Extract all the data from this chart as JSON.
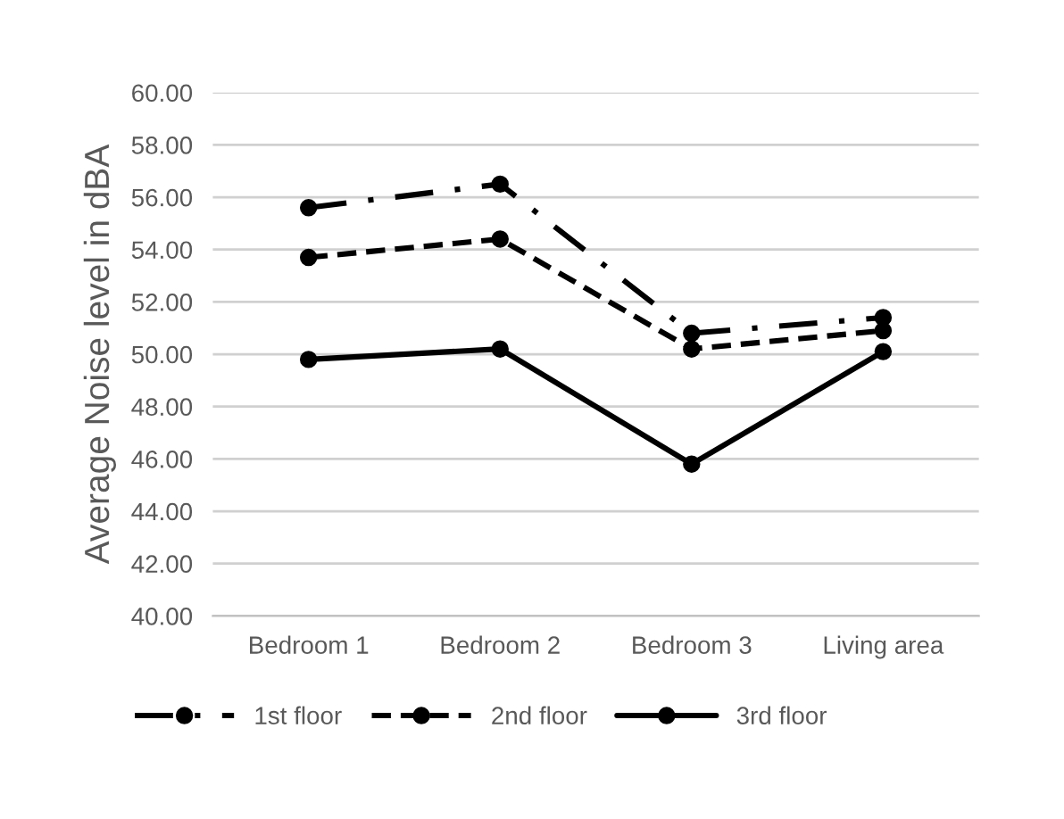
{
  "chart_data": {
    "type": "line",
    "ylabel": "Average Noise level in dBA",
    "categories": [
      "Bedroom 1",
      "Bedroom 2",
      "Bedroom 3",
      "Living area"
    ],
    "series": [
      {
        "name": "1st floor",
        "color": "#000000",
        "line_style": "dashdot",
        "values": [
          55.6,
          56.5,
          50.8,
          51.4
        ]
      },
      {
        "name": "2nd floor",
        "color": "#000000",
        "line_style": "dashed",
        "values": [
          53.7,
          54.4,
          50.2,
          50.9
        ]
      },
      {
        "name": "3rd floor",
        "color": "#000000",
        "line_style": "solid",
        "values": [
          49.8,
          50.2,
          45.8,
          50.1
        ]
      }
    ],
    "ylim": [
      40,
      60
    ],
    "yticks": [
      {
        "value": 40,
        "label": "40.00"
      },
      {
        "value": 42,
        "label": "42.00"
      },
      {
        "value": 44,
        "label": "44.00"
      },
      {
        "value": 46,
        "label": "46.00"
      },
      {
        "value": 48,
        "label": "48.00"
      },
      {
        "value": 50,
        "label": "50.00"
      },
      {
        "value": 52,
        "label": "52.00"
      },
      {
        "value": 54,
        "label": "54.00"
      },
      {
        "value": 56,
        "label": "56.00"
      },
      {
        "value": 58,
        "label": "58.00"
      },
      {
        "value": 60,
        "label": "60.00"
      }
    ],
    "grid": "y",
    "legend": "bottom",
    "marker": "circle"
  }
}
